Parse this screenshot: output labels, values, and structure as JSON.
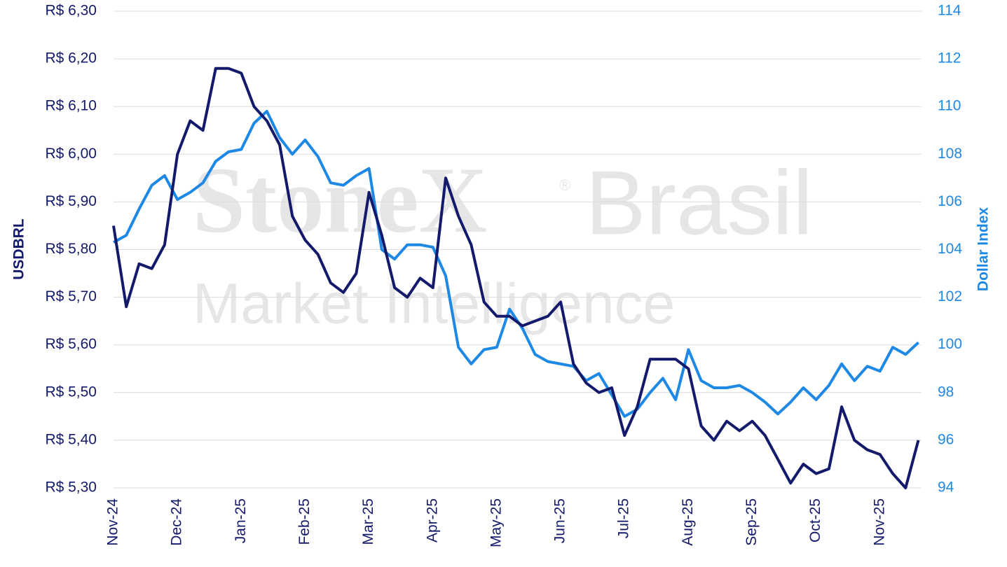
{
  "chart_data": {
    "type": "line",
    "watermark": {
      "brand": "StoneX",
      "mark": "®",
      "region": "Brasil",
      "subtitle": "Market Intelligence"
    },
    "y_label": "USDBRL",
    "y2_label": "Dollar Index",
    "categories": [
      "Nov-24",
      null,
      null,
      null,
      null,
      "Dec-24",
      null,
      null,
      null,
      null,
      "Jan-25",
      null,
      null,
      null,
      null,
      "Feb-25",
      null,
      null,
      null,
      null,
      "Mar-25",
      null,
      null,
      null,
      null,
      "Apr-25",
      null,
      null,
      null,
      null,
      "May-25",
      null,
      null,
      null,
      null,
      "Jun-25",
      null,
      null,
      null,
      null,
      "Jul-25",
      null,
      null,
      null,
      null,
      "Aug-25",
      null,
      null,
      null,
      null,
      "Sep-25",
      null,
      null,
      null,
      null,
      "Oct-25",
      null,
      null,
      null,
      null,
      "Nov-25",
      null,
      null,
      null
    ],
    "series": [
      {
        "color": "#141a6b",
        "axis": "y",
        "values": [
          5.85,
          5.68,
          5.77,
          5.76,
          5.81,
          6.0,
          6.07,
          6.05,
          6.18,
          6.18,
          6.17,
          6.1,
          6.07,
          6.02,
          5.87,
          5.82,
          5.79,
          5.73,
          5.71,
          5.75,
          5.92,
          5.83,
          5.72,
          5.7,
          5.74,
          5.72,
          5.95,
          5.87,
          5.81,
          5.69,
          5.66,
          5.66,
          5.64,
          5.65,
          5.66,
          5.69,
          5.56,
          5.52,
          5.5,
          5.51,
          5.41,
          5.47,
          5.57,
          5.57,
          5.57,
          5.55,
          5.43,
          5.4,
          5.44,
          5.42,
          5.44,
          5.41,
          5.36,
          5.31,
          5.35,
          5.33,
          5.34,
          5.47,
          5.4,
          5.38,
          5.37,
          5.33,
          5.3,
          5.4
        ]
      },
      {
        "color": "#1e88e5",
        "axis": "y2",
        "values": [
          104.3,
          104.6,
          105.7,
          106.7,
          107.1,
          106.1,
          106.4,
          106.8,
          107.7,
          108.1,
          108.2,
          109.3,
          109.8,
          108.7,
          108.0,
          108.6,
          107.9,
          106.8,
          106.7,
          107.1,
          107.4,
          104.0,
          103.6,
          104.2,
          104.2,
          104.1,
          102.9,
          99.9,
          99.2,
          99.8,
          99.9,
          101.5,
          100.7,
          99.6,
          99.3,
          99.2,
          99.1,
          98.5,
          98.8,
          97.9,
          97.0,
          97.3,
          98.0,
          98.6,
          97.7,
          99.8,
          98.5,
          98.2,
          98.2,
          98.3,
          98.0,
          97.6,
          97.1,
          97.6,
          98.2,
          97.7,
          98.3,
          99.2,
          98.5,
          99.1,
          98.9,
          99.9,
          99.6,
          100.1
        ]
      }
    ],
    "ylim": [
      5.3,
      6.3
    ],
    "yticks": [
      {
        "value": 5.3,
        "label": "R$ 5,30"
      },
      {
        "value": 5.4,
        "label": "R$ 5,40"
      },
      {
        "value": 5.5,
        "label": "R$ 5,50"
      },
      {
        "value": 5.6,
        "label": "R$ 5,60"
      },
      {
        "value": 5.7,
        "label": "R$ 5,70"
      },
      {
        "value": 5.8,
        "label": "R$ 5,80"
      },
      {
        "value": 5.9,
        "label": "R$ 5,90"
      },
      {
        "value": 6.0,
        "label": "R$ 6,00"
      },
      {
        "value": 6.1,
        "label": "R$ 6,10"
      },
      {
        "value": 6.2,
        "label": "R$ 6,20"
      },
      {
        "value": 6.3,
        "label": "R$ 6,30"
      }
    ],
    "y2lim": [
      94,
      114
    ],
    "y2ticks": [
      94,
      96,
      98,
      100,
      102,
      104,
      106,
      108,
      110,
      112,
      114
    ],
    "grid": true
  }
}
